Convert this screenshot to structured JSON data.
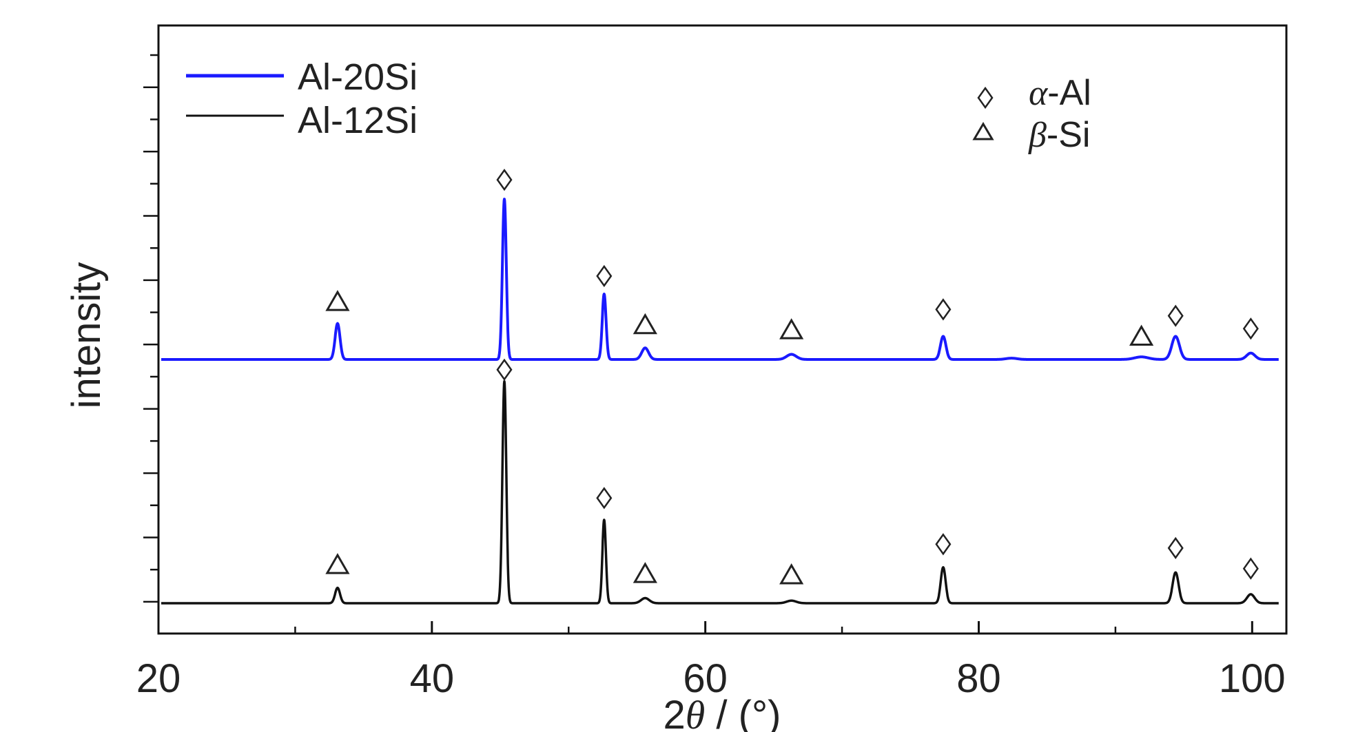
{
  "chart_data": {
    "type": "line",
    "xlabel": "2θ / (°)",
    "xlabel_parts": {
      "prefix": "2",
      "symbol": "θ",
      "suffix": " / (°)"
    },
    "ylabel": "intensity",
    "xlim": [
      20,
      102
    ],
    "x_ticks": [
      20,
      40,
      60,
      80,
      100
    ],
    "y_ticks_labeled": false,
    "grid": false,
    "legend": {
      "placement": "top-left",
      "entries": [
        {
          "label": "Al-20Si",
          "color": "#1a1aff"
        },
        {
          "label": "Al-12Si",
          "color": "#111111"
        }
      ]
    },
    "phase_legend": {
      "placement": "top-right",
      "entries": [
        {
          "marker": "diamond",
          "symbol": "α",
          "text": "-Al",
          "label": "α-Al"
        },
        {
          "marker": "triangle",
          "symbol": "β",
          "text": "-Si",
          "label": "β-Si"
        }
      ]
    },
    "series": [
      {
        "name": "Al-20Si",
        "color": "#1a1aff",
        "baseline": 0,
        "peaks": [
          {
            "x": 33.1,
            "height": 0.28,
            "width": 0.18,
            "phase": "β-Si"
          },
          {
            "x": 45.3,
            "height": 1.25,
            "width": 0.14,
            "phase": "α-Al"
          },
          {
            "x": 52.6,
            "height": 0.51,
            "width": 0.14,
            "phase": "α-Al"
          },
          {
            "x": 55.6,
            "height": 0.09,
            "width": 0.25,
            "phase": "β-Si"
          },
          {
            "x": 66.3,
            "height": 0.04,
            "width": 0.35,
            "phase": "β-Si"
          },
          {
            "x": 77.4,
            "height": 0.18,
            "width": 0.2,
            "phase": "α-Al"
          },
          {
            "x": 82.4,
            "height": 0.01,
            "width": 0.4,
            "phase": ""
          },
          {
            "x": 91.9,
            "height": 0.02,
            "width": 0.5,
            "phase": "β-Si"
          },
          {
            "x": 94.4,
            "height": 0.18,
            "width": 0.28,
            "phase": "α-Al"
          },
          {
            "x": 99.9,
            "height": 0.05,
            "width": 0.3,
            "phase": "α-Al"
          }
        ]
      },
      {
        "name": "Al-12Si",
        "color": "#111111",
        "baseline": -1.9,
        "peaks": [
          {
            "x": 33.1,
            "height": 0.12,
            "width": 0.18,
            "phase": "β-Si"
          },
          {
            "x": 45.3,
            "height": 1.73,
            "width": 0.14,
            "phase": "α-Al"
          },
          {
            "x": 52.6,
            "height": 0.65,
            "width": 0.13,
            "phase": "α-Al"
          },
          {
            "x": 55.6,
            "height": 0.04,
            "width": 0.3,
            "phase": "β-Si"
          },
          {
            "x": 66.3,
            "height": 0.02,
            "width": 0.35,
            "phase": "β-Si"
          },
          {
            "x": 77.4,
            "height": 0.28,
            "width": 0.18,
            "phase": "α-Al"
          },
          {
            "x": 94.4,
            "height": 0.24,
            "width": 0.22,
            "phase": "α-Al"
          },
          {
            "x": 99.9,
            "height": 0.07,
            "width": 0.28,
            "phase": "α-Al"
          }
        ]
      }
    ],
    "ylim": [
      -2.15,
      2.6
    ],
    "peak_markers": [
      {
        "series": "Al-20Si",
        "x": 33.1,
        "marker": "triangle",
        "y": 0.45
      },
      {
        "series": "Al-20Si",
        "x": 45.3,
        "marker": "diamond",
        "y": 1.4
      },
      {
        "series": "Al-20Si",
        "x": 52.6,
        "marker": "diamond",
        "y": 0.65
      },
      {
        "series": "Al-20Si",
        "x": 55.6,
        "marker": "triangle",
        "y": 0.27
      },
      {
        "series": "Al-20Si",
        "x": 66.3,
        "marker": "triangle",
        "y": 0.23
      },
      {
        "series": "Al-20Si",
        "x": 77.4,
        "marker": "diamond",
        "y": 0.39
      },
      {
        "series": "Al-20Si",
        "x": 91.9,
        "marker": "triangle",
        "y": 0.18
      },
      {
        "series": "Al-20Si",
        "x": 94.4,
        "marker": "diamond",
        "y": 0.34
      },
      {
        "series": "Al-20Si",
        "x": 99.9,
        "marker": "diamond",
        "y": 0.24
      },
      {
        "series": "Al-12Si",
        "x": 33.1,
        "marker": "triangle",
        "y": -1.6
      },
      {
        "series": "Al-12Si",
        "x": 45.3,
        "marker": "diamond",
        "y": -0.08
      },
      {
        "series": "Al-12Si",
        "x": 52.6,
        "marker": "diamond",
        "y": -1.08
      },
      {
        "series": "Al-12Si",
        "x": 55.6,
        "marker": "triangle",
        "y": -1.67
      },
      {
        "series": "Al-12Si",
        "x": 66.3,
        "marker": "triangle",
        "y": -1.68
      },
      {
        "series": "Al-12Si",
        "x": 77.4,
        "marker": "diamond",
        "y": -1.44
      },
      {
        "series": "Al-12Si",
        "x": 94.4,
        "marker": "diamond",
        "y": -1.47
      },
      {
        "series": "Al-12Si",
        "x": 99.9,
        "marker": "diamond",
        "y": -1.63
      }
    ]
  }
}
